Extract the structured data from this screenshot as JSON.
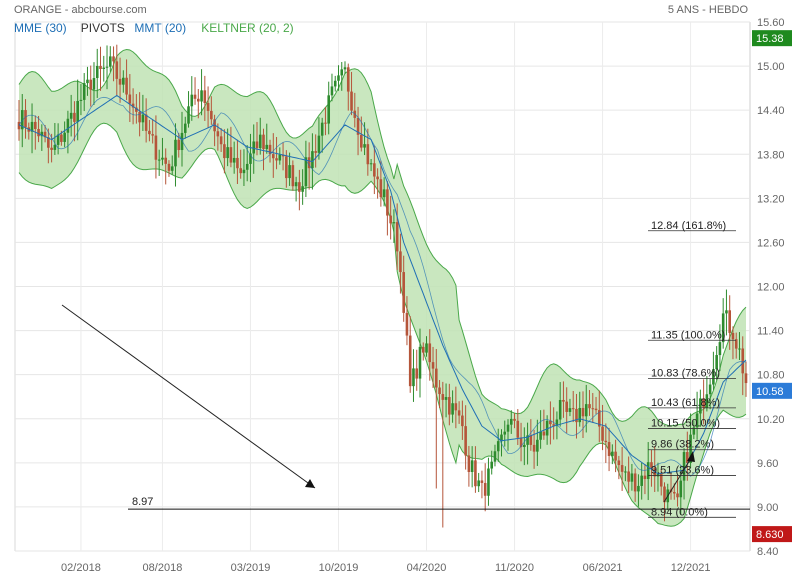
{
  "header": {
    "title": "ORANGE - abcbourse.com",
    "period": "5 ANS - HEBDO"
  },
  "legend": [
    {
      "label": "MME (30)",
      "color": "#1f6fb5"
    },
    {
      "label": "PIVOTS",
      "color": "#333333"
    },
    {
      "label": "MMT (20)",
      "color": "#1f6fb5"
    },
    {
      "label": "KELTNER (20, 2)",
      "color": "#4aa84a"
    }
  ],
  "colors": {
    "up_candle": "#2e8b2e",
    "down_candle": "#b5553a",
    "keltner_fill": "#bfe3b4",
    "keltner_line": "#4aa84a",
    "ma_line": "#1f6fb5",
    "last_price_badge": "#2b7bd8",
    "high_badge": "#1e8a1e",
    "low_badge": "#c01818"
  },
  "chart_data": {
    "type": "candlestick",
    "x_tick_labels": [
      "02/2018",
      "08/2018",
      "03/2019",
      "10/2019",
      "04/2020",
      "11/2020",
      "06/2021",
      "12/2021"
    ],
    "y_tick_labels": [
      "15.60",
      "15.00",
      "14.40",
      "13.80",
      "13.20",
      "12.60",
      "12.00",
      "11.40",
      "10.80",
      "10.20",
      "9.60",
      "9.00",
      "8.40"
    ],
    "ylim": [
      8.4,
      15.6
    ],
    "grid": true,
    "price_badges": {
      "high": "15.38",
      "last": "10.58",
      "low": "8.630"
    },
    "horizontal_level": {
      "label": "8.97",
      "value": 8.97
    },
    "fibonacci_levels": [
      {
        "label": "12.84  (161.8%)",
        "value": 12.84
      },
      {
        "label": "11.35  (100.0%)",
        "value": 11.35
      },
      {
        "label": "10.83  (78.6%)",
        "value": 10.83
      },
      {
        "label": "10.43  (61.8%)",
        "value": 10.43
      },
      {
        "label": "10.15  (50.0%)",
        "value": 10.15
      },
      {
        "label": "9.86  (38.2%)",
        "value": 9.86
      },
      {
        "label": "9.51  (23.6%)",
        "value": 9.51
      },
      {
        "label": "8.94  (0.0%)",
        "value": 8.94
      }
    ],
    "close_path": [
      [
        0,
        14.3
      ],
      [
        6,
        14.1
      ],
      [
        10,
        13.8
      ],
      [
        16,
        14.3
      ],
      [
        22,
        14.8
      ],
      [
        28,
        15.0
      ],
      [
        34,
        14.6
      ],
      [
        40,
        14.0
      ],
      [
        46,
        13.6
      ],
      [
        52,
        14.4
      ],
      [
        56,
        14.7
      ],
      [
        62,
        13.9
      ],
      [
        68,
        13.5
      ],
      [
        74,
        14.0
      ],
      [
        80,
        13.7
      ],
      [
        86,
        13.4
      ],
      [
        90,
        13.8
      ],
      [
        96,
        14.6
      ],
      [
        100,
        14.9
      ],
      [
        104,
        14.2
      ],
      [
        108,
        13.6
      ],
      [
        112,
        13.2
      ],
      [
        116,
        12.6
      ],
      [
        118,
        11.8
      ],
      [
        120,
        10.6
      ],
      [
        124,
        11.2
      ],
      [
        128,
        10.7
      ],
      [
        132,
        10.4
      ],
      [
        136,
        10.1
      ],
      [
        138,
        9.6
      ],
      [
        142,
        9.2
      ],
      [
        146,
        9.6
      ],
      [
        150,
        10.2
      ],
      [
        154,
        9.9
      ],
      [
        158,
        9.8
      ],
      [
        162,
        10.1
      ],
      [
        166,
        10.3
      ],
      [
        170,
        10.2
      ],
      [
        174,
        10.4
      ],
      [
        178,
        10.1
      ],
      [
        182,
        9.7
      ],
      [
        186,
        9.4
      ],
      [
        190,
        9.35
      ],
      [
        194,
        9.6
      ],
      [
        198,
        9.2
      ],
      [
        202,
        9.0
      ],
      [
        204,
        9.6
      ],
      [
        208,
        10.2
      ],
      [
        212,
        10.8
      ],
      [
        216,
        11.6
      ],
      [
        219,
        11.4
      ],
      [
        221,
        11.1
      ],
      [
        223,
        10.7
      ]
    ],
    "ma_path": [
      [
        0,
        14.2
      ],
      [
        10,
        14.0
      ],
      [
        20,
        14.3
      ],
      [
        30,
        14.6
      ],
      [
        40,
        14.3
      ],
      [
        50,
        14.0
      ],
      [
        60,
        14.2
      ],
      [
        70,
        13.9
      ],
      [
        80,
        13.8
      ],
      [
        90,
        13.7
      ],
      [
        100,
        14.2
      ],
      [
        108,
        14.0
      ],
      [
        114,
        13.3
      ],
      [
        118,
        12.6
      ],
      [
        124,
        11.9
      ],
      [
        130,
        11.2
      ],
      [
        136,
        10.6
      ],
      [
        142,
        10.1
      ],
      [
        148,
        9.9
      ],
      [
        156,
        9.95
      ],
      [
        164,
        10.1
      ],
      [
        172,
        10.2
      ],
      [
        180,
        10.1
      ],
      [
        188,
        9.7
      ],
      [
        196,
        9.45
      ],
      [
        204,
        9.5
      ],
      [
        210,
        10.0
      ],
      [
        216,
        10.7
      ],
      [
        223,
        11.0
      ]
    ]
  }
}
